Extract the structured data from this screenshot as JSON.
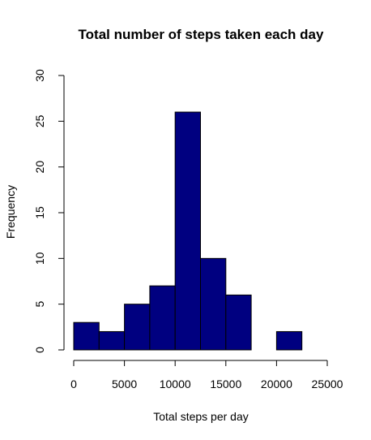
{
  "chart_data": {
    "type": "bar",
    "title": "Total number of steps taken each day",
    "xlabel": "Total steps per day",
    "ylabel": "Frequency",
    "bins": [
      {
        "from": 0,
        "to": 2500,
        "count": 3
      },
      {
        "from": 2500,
        "to": 5000,
        "count": 2
      },
      {
        "from": 5000,
        "to": 7500,
        "count": 5
      },
      {
        "from": 7500,
        "to": 10000,
        "count": 7
      },
      {
        "from": 10000,
        "to": 12500,
        "count": 26
      },
      {
        "from": 12500,
        "to": 15000,
        "count": 10
      },
      {
        "from": 15000,
        "to": 17500,
        "count": 6
      },
      {
        "from": 17500,
        "to": 20000,
        "count": 0
      },
      {
        "from": 20000,
        "to": 22500,
        "count": 2
      }
    ],
    "xlim": [
      0,
      25000
    ],
    "ylim": [
      0,
      30
    ],
    "x_ticks": [
      0,
      5000,
      10000,
      15000,
      20000,
      25000
    ],
    "y_ticks": [
      0,
      5,
      10,
      15,
      20,
      25,
      30
    ],
    "bar_color": "#000080",
    "grid": false
  }
}
